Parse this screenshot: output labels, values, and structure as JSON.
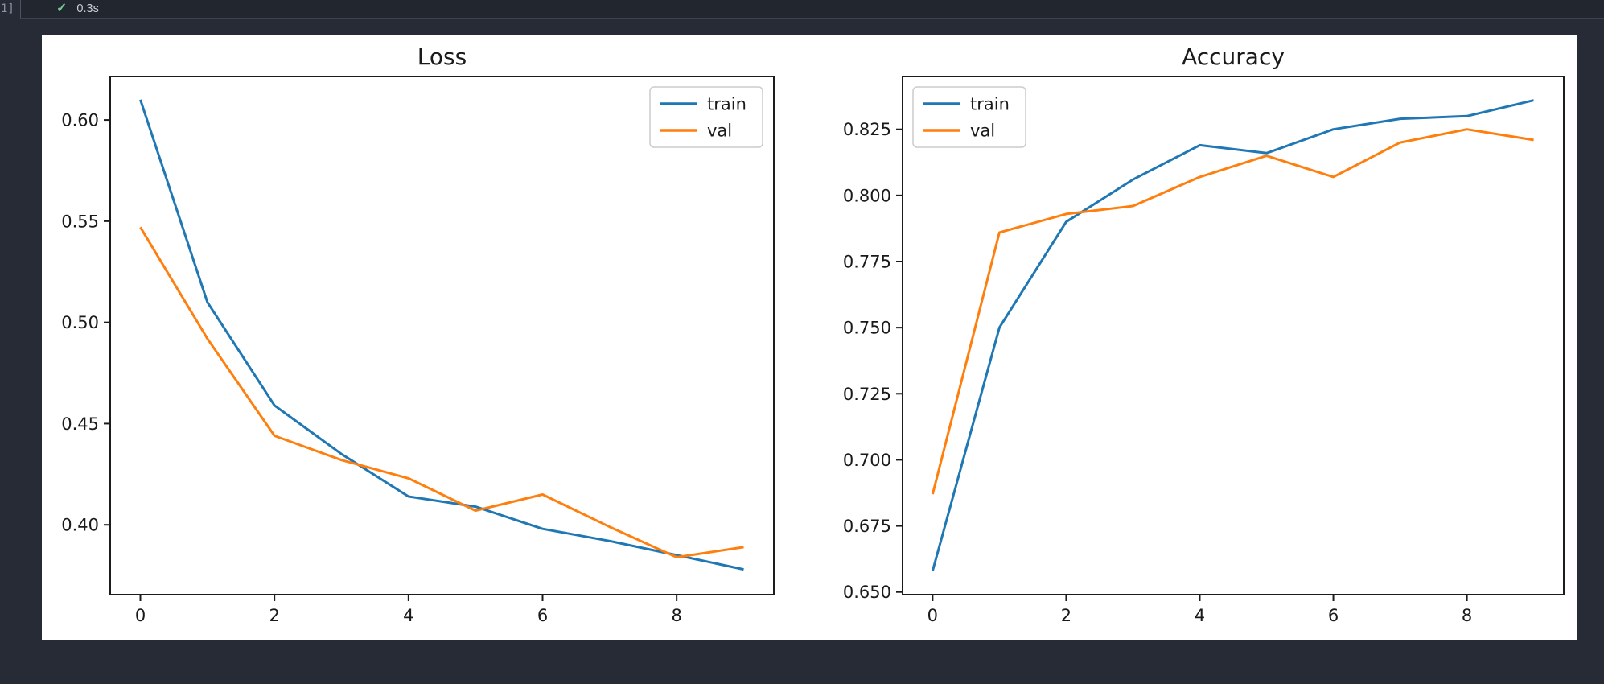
{
  "notebook": {
    "execution_count": "1]",
    "status_icon": "check-icon",
    "duration": "0.3s"
  },
  "colors": {
    "page_bg": "#262b35",
    "toolbar_bg": "#21262f",
    "figure_bg": "#ffffff",
    "axis_color": "#1c1c1c",
    "text_color": "#1a1a1a",
    "train_color": "#1f77b4",
    "val_color": "#ff7f0e",
    "legend_border": "#cccccc",
    "check_green": "#73c991"
  },
  "legend_labels": [
    "train",
    "val"
  ],
  "chart_data": [
    {
      "type": "line",
      "title": "Loss",
      "xlabel": "",
      "ylabel": "",
      "x": [
        0,
        1,
        2,
        3,
        4,
        5,
        6,
        7,
        8,
        9
      ],
      "series": [
        {
          "name": "train",
          "color_key": "train_color",
          "values": [
            0.61,
            0.51,
            0.459,
            0.435,
            0.414,
            0.409,
            0.398,
            0.392,
            0.385,
            0.378
          ]
        },
        {
          "name": "val",
          "color_key": "val_color",
          "values": [
            0.547,
            0.492,
            0.444,
            0.432,
            0.423,
            0.407,
            0.415,
            0.399,
            0.384,
            0.389
          ]
        }
      ],
      "xlim": [
        -0.45,
        9.45
      ],
      "ylim": [
        0.3655,
        0.6215
      ],
      "xticks": [
        0,
        2,
        4,
        6,
        8
      ],
      "xtick_labels": [
        "0",
        "2",
        "4",
        "6",
        "8"
      ],
      "yticks": [
        0.4,
        0.45,
        0.5,
        0.55,
        0.6
      ],
      "ytick_labels": [
        "0.40",
        "0.45",
        "0.50",
        "0.55",
        "0.60"
      ],
      "grid": false,
      "legend_pos": "upper-right"
    },
    {
      "type": "line",
      "title": "Accuracy",
      "xlabel": "",
      "ylabel": "",
      "x": [
        0,
        1,
        2,
        3,
        4,
        5,
        6,
        7,
        8,
        9
      ],
      "series": [
        {
          "name": "train",
          "color_key": "train_color",
          "values": [
            0.658,
            0.75,
            0.79,
            0.806,
            0.819,
            0.816,
            0.825,
            0.829,
            0.83,
            0.836
          ]
        },
        {
          "name": "val",
          "color_key": "val_color",
          "values": [
            0.687,
            0.786,
            0.793,
            0.796,
            0.807,
            0.815,
            0.807,
            0.82,
            0.825,
            0.821
          ]
        }
      ],
      "xlim": [
        -0.45,
        9.45
      ],
      "ylim": [
        0.649,
        0.845
      ],
      "xticks": [
        0,
        2,
        4,
        6,
        8
      ],
      "xtick_labels": [
        "0",
        "2",
        "4",
        "6",
        "8"
      ],
      "yticks": [
        0.65,
        0.675,
        0.7,
        0.725,
        0.75,
        0.775,
        0.8,
        0.825
      ],
      "ytick_labels": [
        "0.650",
        "0.675",
        "0.700",
        "0.725",
        "0.750",
        "0.775",
        "0.800",
        "0.825"
      ],
      "grid": false,
      "legend_pos": "upper-left"
    }
  ]
}
